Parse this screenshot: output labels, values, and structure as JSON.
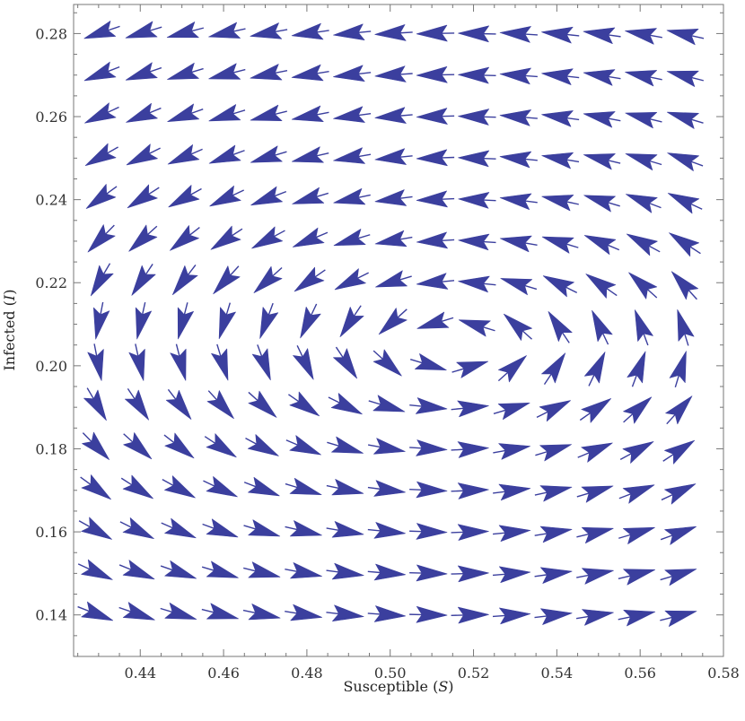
{
  "chart_data": {
    "type": "vector_field",
    "xlabel": "Susceptible (S)",
    "xlabel_parts": [
      "Susceptible (",
      "S",
      ")"
    ],
    "ylabel": "Infected (I)",
    "ylabel_parts": [
      "Infected (",
      "I",
      ")"
    ],
    "xlim": [
      0.424,
      0.58
    ],
    "ylim": [
      0.13,
      0.287
    ],
    "x_ticks": [
      "0.44",
      "0.46",
      "0.48",
      "0.50",
      "0.52",
      "0.54",
      "0.56",
      "0.58"
    ],
    "y_ticks": [
      "0.14",
      "0.16",
      "0.18",
      "0.20",
      "0.22",
      "0.24",
      "0.26",
      "0.28"
    ],
    "grid": false,
    "arrow_color": "#3b3f9e",
    "field": {
      "x_points": [
        0.43,
        0.44,
        0.45,
        0.46,
        0.47,
        0.48,
        0.49,
        0.5,
        0.51,
        0.52,
        0.53,
        0.54,
        0.55,
        0.56,
        0.57
      ],
      "y_points": [
        0.14,
        0.15,
        0.16,
        0.17,
        0.18,
        0.19,
        0.2,
        0.21,
        0.22,
        0.23,
        0.24,
        0.25,
        0.26,
        0.27,
        0.28
      ],
      "equilibrium": {
        "S": 0.515,
        "I": 0.205
      },
      "description_direction": "counter-clockwise spiral around equilibrium; rightward at low I, leftward at high I"
    }
  }
}
